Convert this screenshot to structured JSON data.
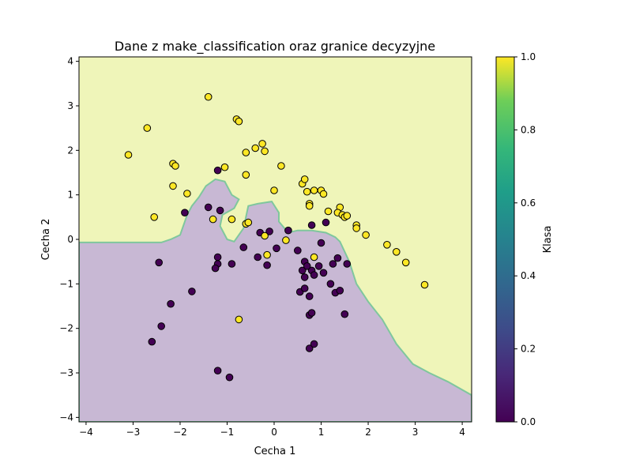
{
  "chart_data": {
    "type": "scatter",
    "title": "Dane z make_classification oraz granice decyzyjne",
    "xlabel": "Cecha 1",
    "ylabel": "Cecha 2",
    "xlim": [
      -4.15,
      4.2
    ],
    "ylim": [
      -4.1,
      4.1
    ],
    "x_ticks": [
      -4,
      -3,
      -2,
      -1,
      0,
      1,
      2,
      3,
      4
    ],
    "y_ticks": [
      -4,
      -3,
      -2,
      -1,
      0,
      1,
      2,
      3,
      4
    ],
    "colorbar": {
      "label": "Klasa",
      "range": [
        0.0,
        1.0
      ],
      "ticks": [
        0.0,
        0.2,
        0.4,
        0.6,
        0.8,
        1.0
      ],
      "tick_labels": [
        "0.0",
        "0.2",
        "0.4",
        "0.6",
        "0.8",
        "1.0"
      ],
      "colormap": "viridis"
    },
    "colors": {
      "class0_point": "#440154",
      "class1_point": "#fde725",
      "class0_region": "#c8b8d4",
      "class1_region": "#eff5b9",
      "boundary": "#7fc79d"
    },
    "decision_region_class0": [
      [
        -4.15,
        -0.07
      ],
      [
        -2.4,
        -0.07
      ],
      [
        -2.2,
        0.0
      ],
      [
        -2.0,
        0.1
      ],
      [
        -1.85,
        0.55
      ],
      [
        -1.75,
        0.75
      ],
      [
        -1.6,
        0.95
      ],
      [
        -1.45,
        1.2
      ],
      [
        -1.25,
        1.35
      ],
      [
        -1.05,
        1.3
      ],
      [
        -0.9,
        1.0
      ],
      [
        -0.75,
        0.9
      ],
      [
        -0.85,
        0.7
      ],
      [
        -1.1,
        0.55
      ],
      [
        -1.15,
        0.3
      ],
      [
        -1.0,
        0.0
      ],
      [
        -0.85,
        -0.05
      ],
      [
        -0.65,
        0.25
      ],
      [
        -0.55,
        0.75
      ],
      [
        -0.35,
        0.8
      ],
      [
        -0.05,
        0.85
      ],
      [
        0.1,
        0.6
      ],
      [
        0.1,
        0.4
      ],
      [
        0.3,
        0.15
      ],
      [
        0.5,
        0.2
      ],
      [
        0.8,
        0.2
      ],
      [
        1.1,
        0.15
      ],
      [
        1.3,
        0.05
      ],
      [
        1.4,
        -0.05
      ],
      [
        1.6,
        -0.5
      ],
      [
        1.75,
        -1.0
      ],
      [
        2.0,
        -1.4
      ],
      [
        2.3,
        -1.8
      ],
      [
        2.6,
        -2.35
      ],
      [
        2.95,
        -2.8
      ],
      [
        3.3,
        -3.0
      ],
      [
        3.7,
        -3.2
      ],
      [
        4.2,
        -3.5
      ],
      [
        4.2,
        -4.1
      ],
      [
        -4.15,
        -4.1
      ]
    ],
    "series": [
      {
        "name": "0",
        "class": 0,
        "points": [
          [
            -1.2,
            1.55
          ],
          [
            -1.4,
            0.72
          ],
          [
            -1.15,
            0.65
          ],
          [
            -1.9,
            0.6
          ],
          [
            -2.45,
            -0.52
          ],
          [
            -2.2,
            -1.45
          ],
          [
            -2.4,
            -1.95
          ],
          [
            -2.6,
            -2.3
          ],
          [
            -1.75,
            -1.17
          ],
          [
            -1.2,
            -0.4
          ],
          [
            -1.2,
            -0.55
          ],
          [
            -1.25,
            -0.65
          ],
          [
            -0.9,
            -0.55
          ],
          [
            -0.65,
            -0.18
          ],
          [
            -0.35,
            -0.4
          ],
          [
            -0.3,
            0.15
          ],
          [
            -0.1,
            0.18
          ],
          [
            -0.15,
            -0.58
          ],
          [
            0.05,
            -0.2
          ],
          [
            0.3,
            0.2
          ],
          [
            0.5,
            -0.25
          ],
          [
            0.65,
            -0.5
          ],
          [
            0.6,
            -0.7
          ],
          [
            0.65,
            -0.85
          ],
          [
            0.55,
            -1.18
          ],
          [
            0.65,
            -1.1
          ],
          [
            0.75,
            -1.28
          ],
          [
            0.8,
            -0.7
          ],
          [
            0.85,
            -0.8
          ],
          [
            0.95,
            -0.6
          ],
          [
            1.05,
            -0.75
          ],
          [
            1.2,
            -1.0
          ],
          [
            1.3,
            -1.2
          ],
          [
            1.4,
            -1.15
          ],
          [
            1.35,
            -0.42
          ],
          [
            1.25,
            -0.55
          ],
          [
            1.55,
            -0.55
          ],
          [
            1.5,
            -1.68
          ],
          [
            0.75,
            -1.7
          ],
          [
            0.8,
            -1.65
          ],
          [
            0.75,
            -2.45
          ],
          [
            0.85,
            -2.35
          ],
          [
            1.0,
            -0.08
          ],
          [
            1.1,
            0.38
          ],
          [
            0.8,
            0.32
          ],
          [
            -1.2,
            -2.95
          ],
          [
            -0.95,
            -3.1
          ],
          [
            0.7,
            -0.6
          ]
        ]
      },
      {
        "name": "1",
        "class": 1,
        "points": [
          [
            -1.4,
            3.2
          ],
          [
            -0.8,
            2.7
          ],
          [
            -0.75,
            2.65
          ],
          [
            -2.7,
            2.5
          ],
          [
            -3.1,
            1.9
          ],
          [
            -2.15,
            1.7
          ],
          [
            -2.1,
            1.65
          ],
          [
            -2.15,
            1.2
          ],
          [
            -1.85,
            1.03
          ],
          [
            -1.05,
            1.62
          ],
          [
            -0.6,
            1.95
          ],
          [
            -0.4,
            2.05
          ],
          [
            -0.25,
            2.15
          ],
          [
            -0.2,
            1.98
          ],
          [
            -0.6,
            1.45
          ],
          [
            0.0,
            1.1
          ],
          [
            0.15,
            1.65
          ],
          [
            0.6,
            1.25
          ],
          [
            0.65,
            1.35
          ],
          [
            0.7,
            1.07
          ],
          [
            0.85,
            1.1
          ],
          [
            1.0,
            1.1
          ],
          [
            1.05,
            1.02
          ],
          [
            0.75,
            0.8
          ],
          [
            0.75,
            0.75
          ],
          [
            1.15,
            0.63
          ],
          [
            1.4,
            0.72
          ],
          [
            1.35,
            0.6
          ],
          [
            1.45,
            0.55
          ],
          [
            1.5,
            0.5
          ],
          [
            1.55,
            0.53
          ],
          [
            1.75,
            0.32
          ],
          [
            1.75,
            0.25
          ],
          [
            1.95,
            0.1
          ],
          [
            2.4,
            -0.12
          ],
          [
            2.6,
            -0.28
          ],
          [
            2.8,
            -0.52
          ],
          [
            3.2,
            -1.02
          ],
          [
            -2.55,
            0.5
          ],
          [
            -1.3,
            0.45
          ],
          [
            -0.9,
            0.45
          ],
          [
            -0.6,
            0.35
          ],
          [
            -0.55,
            0.38
          ],
          [
            -0.2,
            0.08
          ],
          [
            -0.15,
            -0.35
          ],
          [
            0.25,
            -0.02
          ],
          [
            0.85,
            -0.4
          ],
          [
            -0.75,
            -1.8
          ]
        ]
      }
    ]
  }
}
